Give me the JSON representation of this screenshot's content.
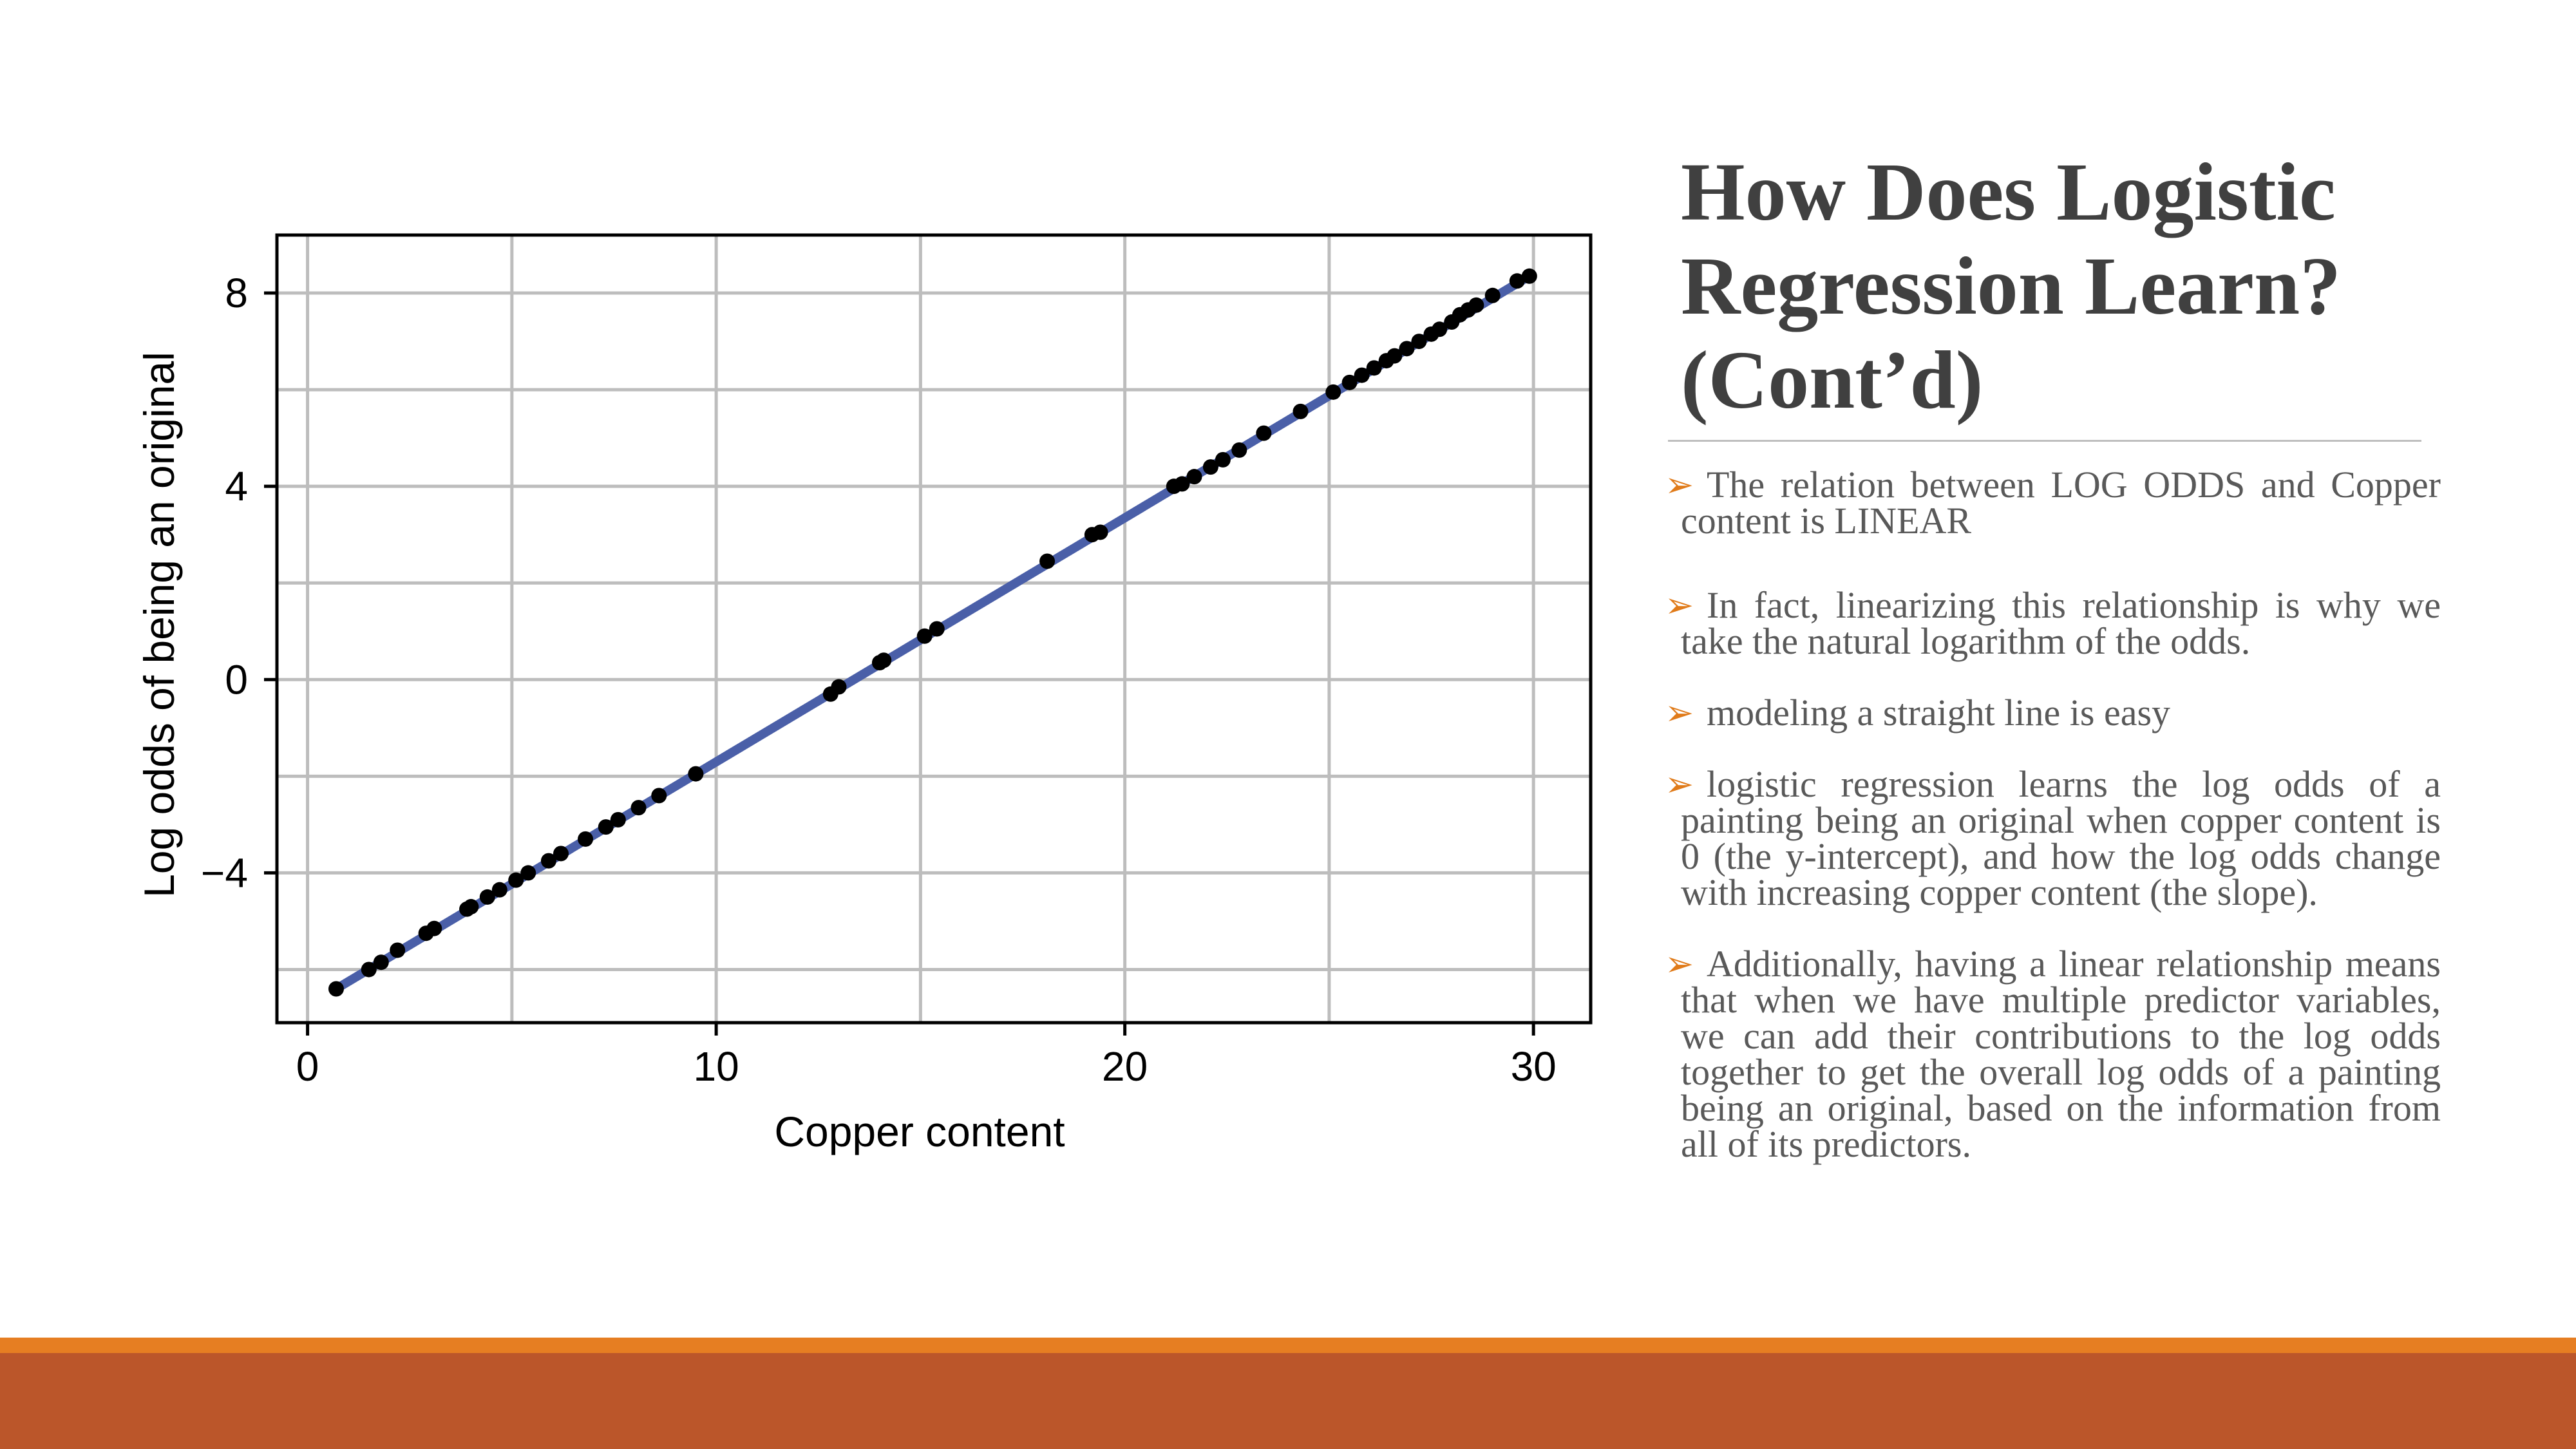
{
  "slide": {
    "title": "How Does Logistic Regression Learn? (Cont’d)",
    "bullet_marker": "➢",
    "bullets": [
      "The relation between LOG ODDS and Copper content is LINEAR",
      "In fact, linearizing this relationship is why we take the natural logarithm of the odds.",
      "modeling a straight line is easy",
      "logistic regression learns the log odds of a painting being an original when copper content is 0 (the y-intercept), and how the log odds change with increasing copper content (the slope).",
      "Additionally, having a linear relationship means that when we have multiple predictor variables, we can add their contributions to the log odds together to get the overall log odds of a painting being an original, based on the information from all of its predictors."
    ],
    "colors": {
      "accent_orange": "#e67e22",
      "footer_rust": "#bb562a",
      "title_gray": "#404040",
      "text_gray": "#595959"
    }
  },
  "chart_data": {
    "type": "scatter",
    "title": "",
    "xlabel": "Copper content",
    "ylabel": "Log odds of being an original",
    "xlim": [
      -0.75,
      31.4
    ],
    "ylim": [
      -7.1,
      9.2
    ],
    "xticks": [
      0,
      10,
      20,
      30
    ],
    "xtick_labels": [
      "0",
      "10",
      "20",
      "30"
    ],
    "yticks": [
      -4,
      0,
      4,
      8
    ],
    "ytick_labels": [
      "−4",
      "0",
      "4",
      "8"
    ],
    "x_minor_grid": [
      5,
      15,
      25
    ],
    "y_minor_grid": [
      -6,
      -2,
      2,
      6
    ],
    "grid": true,
    "legend": "none",
    "line": {
      "x": [
        0.7,
        29.9
      ],
      "y": [
        -6.4,
        8.35
      ],
      "color": "#4a5fa8"
    },
    "point_color": "#000000",
    "points": {
      "x": [
        0.7,
        1.5,
        1.8,
        2.2,
        2.9,
        3.1,
        3.9,
        4.0,
        4.4,
        4.7,
        5.1,
        5.4,
        5.9,
        6.2,
        6.8,
        7.3,
        7.6,
        8.1,
        8.6,
        9.5,
        12.8,
        13.0,
        14.0,
        14.1,
        15.1,
        15.4,
        18.1,
        19.2,
        19.4,
        21.2,
        21.4,
        21.7,
        22.1,
        22.4,
        22.8,
        23.4,
        24.3,
        25.1,
        25.5,
        25.8,
        26.1,
        26.4,
        26.6,
        26.9,
        27.2,
        27.5,
        27.7,
        28.0,
        28.2,
        28.4,
        28.6,
        29.0,
        29.6,
        29.9
      ],
      "y": [
        -6.4,
        -6.0,
        -5.85,
        -5.6,
        -5.25,
        -5.15,
        -4.75,
        -4.7,
        -4.5,
        -4.35,
        -4.15,
        -4.0,
        -3.75,
        -3.6,
        -3.3,
        -3.05,
        -2.9,
        -2.65,
        -2.4,
        -1.95,
        -0.3,
        -0.15,
        0.35,
        0.4,
        0.9,
        1.05,
        2.45,
        3.0,
        3.05,
        4.0,
        4.05,
        4.2,
        4.4,
        4.55,
        4.75,
        5.1,
        5.55,
        5.95,
        6.15,
        6.3,
        6.45,
        6.6,
        6.7,
        6.85,
        7.0,
        7.15,
        7.25,
        7.4,
        7.55,
        7.65,
        7.75,
        7.95,
        8.25,
        8.35
      ]
    }
  }
}
